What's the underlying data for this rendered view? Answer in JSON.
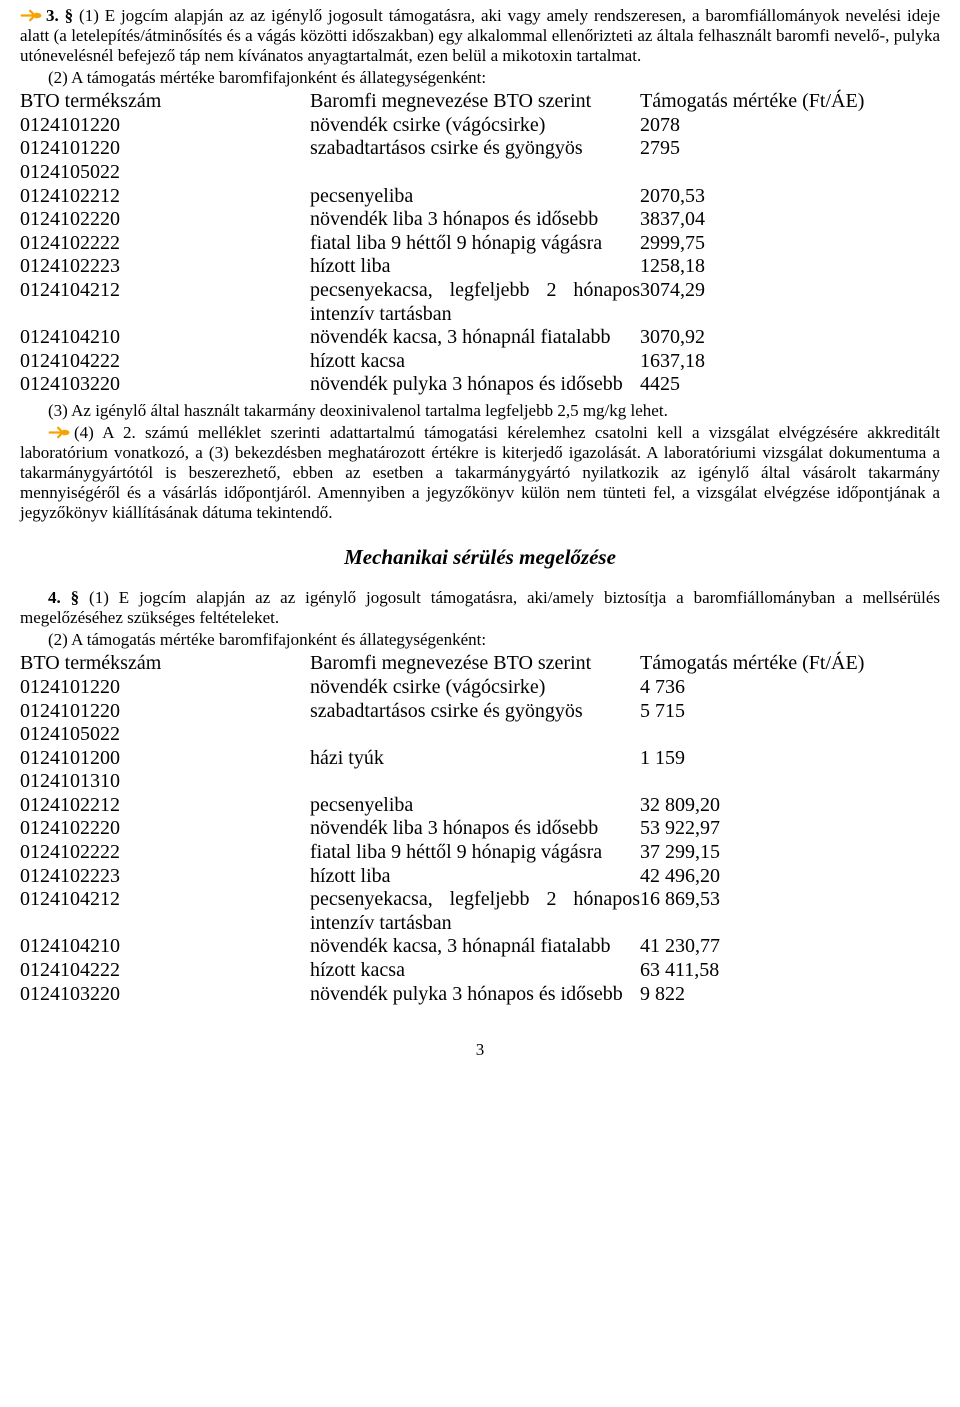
{
  "icon_color": "#f5a300",
  "section1": {
    "para3_lead": "3. §",
    "para3_text": " (1) E jogcím alapján az az igénylő jogosult támogatásra, aki vagy amely rendszeresen, a baromfiállományok nevelési ideje alatt (a letelepítés/átminősítés és a vágás közötti időszakban) egy alkalommal ellenőrizteti az általa felhasznált baromfi nevelő-, pulyka utónevelésnél befejező táp nem kívánatos anyagtartalmát, ezen belül a mikotoxin tartalmat.",
    "para3_sub2": "(2) A támogatás mértéke baromfifajonként és állategységenként:",
    "table_head": {
      "c1": "BTO termékszám",
      "c2": "Baromfi megnevezése BTO szerint",
      "c3": "Támogatás mértéke (Ft/ÁE)"
    },
    "rows": [
      {
        "code": "0124101220",
        "name": "növendék csirke (vágócsirke)",
        "amt": "2078"
      },
      {
        "code": "0124101220\n0124105022",
        "name": "szabadtartásos csirke és gyöngyös",
        "amt": "2795"
      },
      {
        "code": "0124102212",
        "name": "pecsenyeliba",
        "amt": "2070,53"
      },
      {
        "code": "0124102220",
        "name": "növendék liba 3 hónapos és idősebb",
        "amt": "3837,04"
      },
      {
        "code": "0124102222",
        "name": "fiatal liba 9 héttől 9 hónapig vágásra",
        "amt": "2999,75"
      },
      {
        "code": "0124102223",
        "name": "hízott liba",
        "amt": "1258,18"
      },
      {
        "code": "0124104212",
        "name": "pecsenyekacsa, legfeljebb 2 hónapos intenzív tartásban",
        "amt": "3074,29"
      },
      {
        "code": "0124104210",
        "name": "növendék kacsa, 3 hónapnál fiatalabb",
        "amt": "3070,92"
      },
      {
        "code": "0124104222",
        "name": "hízott kacsa",
        "amt": "1637,18"
      },
      {
        "code": "0124103220",
        "name": "növendék pulyka 3 hónapos és idősebb",
        "amt": "4425"
      }
    ],
    "para3_sub3": "(3) Az igénylő által használt takarmány deoxinivalenol tartalma legfeljebb 2,5 mg/kg lehet.",
    "para3_sub4": "(4) A 2. számú melléklet szerinti adattartalmú támogatási kérelemhez csatolni kell a vizsgálat elvégzésére akkreditált laboratórium vonatkozó, a (3) bekezdésben meghatározott értékre is kiterjedő igazolását. A laboratóriumi vizsgálat dokumentuma a takarmánygyártótól is beszerezhető, ebben az esetben a takarmánygyártó nyilatkozik az igénylő által vásárolt takarmány mennyiségéről és a vásárlás időpontjáról. Amennyiben a jegyzőkönyv külön nem tünteti fel, a vizsgálat elvégzése időpontjának a jegyzőkönyv kiállításának dátuma tekintendő."
  },
  "section2_title": "Mechanikai sérülés megelőzése",
  "section2": {
    "para4_lead": "4. §",
    "para4_text": " (1) E jogcím alapján az az igénylő jogosult támogatásra, aki/amely biztosítja a baromfiállományban a mellsérülés megelőzéséhez szükséges feltételeket.",
    "para4_sub2": "(2) A támogatás mértéke baromfifajonként és állategységenként:",
    "table_head": {
      "c1": "BTO termékszám",
      "c2": "Baromfi megnevezése BTO szerint",
      "c3": "Támogatás mértéke (Ft/ÁE)"
    },
    "rows": [
      {
        "code": "0124101220",
        "name": "növendék csirke (vágócsirke)",
        "amt": "4 736"
      },
      {
        "code": "0124101220\n0124105022",
        "name": "szabadtartásos csirke és gyöngyös",
        "amt": "5 715"
      },
      {
        "code": "0124101200\n0124101310",
        "name": "házi tyúk",
        "amt": "1 159"
      },
      {
        "code": "0124102212",
        "name": "pecsenyeliba",
        "amt": "32 809,20"
      },
      {
        "code": "0124102220",
        "name": "növendék liba 3 hónapos és idősebb",
        "amt": "53 922,97"
      },
      {
        "code": "0124102222",
        "name": "fiatal liba 9 héttől 9 hónapig vágásra",
        "amt": "37 299,15"
      },
      {
        "code": "0124102223",
        "name": "hízott liba",
        "amt": "42 496,20"
      },
      {
        "code": "0124104212",
        "name": "pecsenyekacsa, legfeljebb 2 hónapos intenzív tartásban",
        "amt": "16 869,53"
      },
      {
        "code": "0124104210",
        "name": "növendék kacsa, 3 hónapnál fiatalabb",
        "amt": "41 230,77"
      },
      {
        "code": "0124104222",
        "name": "hízott kacsa",
        "amt": "63 411,58"
      },
      {
        "code": "0124103220",
        "name": "növendék pulyka 3 hónapos és idősebb",
        "amt": "9 822"
      }
    ]
  },
  "page_number": "3"
}
